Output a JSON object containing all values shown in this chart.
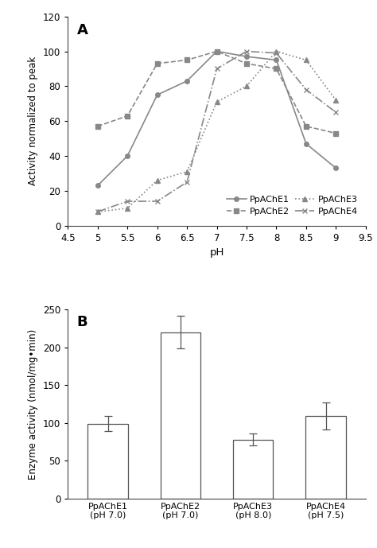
{
  "panel_A": {
    "xlabel": "pH",
    "ylabel": "Activity normalized to peak",
    "xlim": [
      4.5,
      9.5
    ],
    "ylim": [
      0,
      120
    ],
    "xticks": [
      4.5,
      5.0,
      5.5,
      6.0,
      6.5,
      7.0,
      7.5,
      8.0,
      8.5,
      9.0,
      9.5
    ],
    "xtick_labels": [
      "4.5",
      "5",
      "5.5",
      "6",
      "6.5",
      "7",
      "7.5",
      "8",
      "8.5",
      "9",
      "9.5"
    ],
    "yticks": [
      0,
      20,
      40,
      60,
      80,
      100,
      120
    ],
    "label": "A",
    "series": {
      "PpAChE1": {
        "x": [
          5.0,
          5.5,
          6.0,
          6.5,
          7.0,
          7.5,
          8.0,
          8.5,
          9.0
        ],
        "y": [
          23,
          40,
          75,
          83,
          100,
          97,
          95,
          47,
          33
        ],
        "linestyle": "-",
        "marker": "o",
        "markersize": 4,
        "color": "#888888",
        "linewidth": 1.2
      },
      "PpAChE2": {
        "x": [
          5.0,
          5.5,
          6.0,
          6.5,
          7.0,
          7.5,
          8.0,
          8.5,
          9.0
        ],
        "y": [
          57,
          63,
          93,
          95,
          100,
          93,
          90,
          57,
          53
        ],
        "linestyle": "--",
        "marker": "s",
        "markersize": 4,
        "color": "#888888",
        "linewidth": 1.2
      },
      "PpAChE3": {
        "x": [
          5.0,
          5.5,
          6.0,
          6.5,
          7.0,
          7.5,
          8.0,
          8.5,
          9.0
        ],
        "y": [
          8,
          10,
          26,
          31,
          71,
          80,
          100,
          95,
          72
        ],
        "linestyle": ":",
        "marker": "^",
        "markersize": 4,
        "color": "#888888",
        "linewidth": 1.2
      },
      "PpAChE4": {
        "x": [
          5.0,
          5.5,
          6.0,
          6.5,
          7.0,
          7.5,
          8.0,
          8.5,
          9.0
        ],
        "y": [
          8,
          14,
          14,
          25,
          90,
          100,
          99,
          78,
          65
        ],
        "linestyle": "-.",
        "marker": "x",
        "markersize": 4,
        "color": "#888888",
        "linewidth": 1.2
      }
    },
    "legend_order": [
      "PpAChE1",
      "PpAChE2",
      "PpAChE3",
      "PpAChE4"
    ]
  },
  "panel_B": {
    "xlabel": "",
    "ylabel": "Enzyme activity (nmol/mg•min)",
    "ylim": [
      0,
      250
    ],
    "yticks": [
      0,
      50,
      100,
      150,
      200,
      250
    ],
    "label": "B",
    "categories": [
      "PpAChE1\n(pH 7.0)",
      "PpAChE2\n(pH 7.0)",
      "PpAChE3\n(pH 8.0)",
      "PpAChE4\n(pH 7.5)"
    ],
    "values": [
      99,
      220,
      78,
      109
    ],
    "errors": [
      10,
      22,
      8,
      18
    ],
    "bar_color": "white",
    "bar_edgecolor": "#555555",
    "bar_width": 0.55
  }
}
